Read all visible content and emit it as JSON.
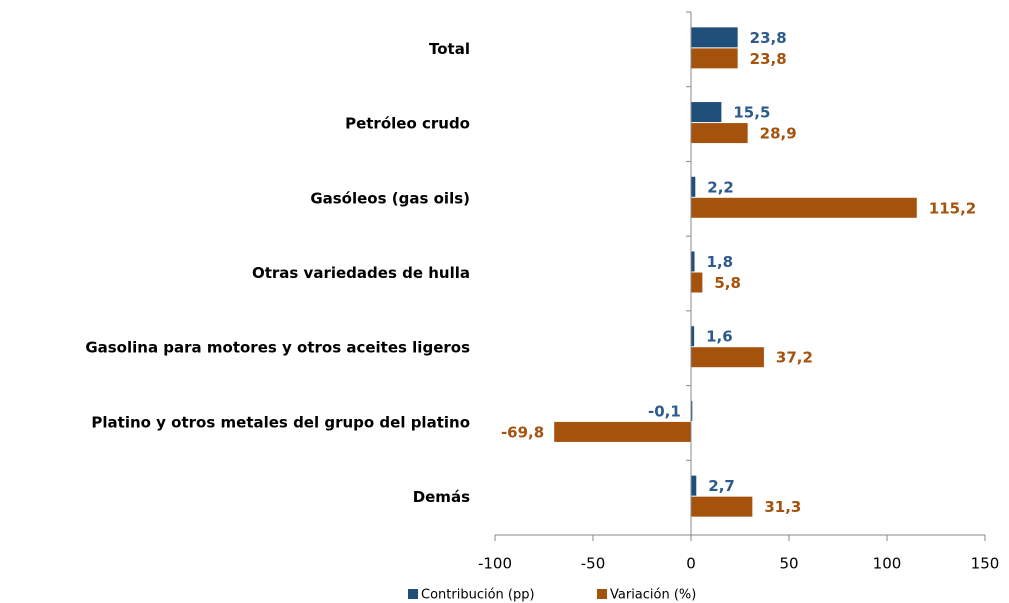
{
  "chart_data": {
    "type": "barh",
    "categories": [
      "Total",
      "Petróleo crudo",
      "Gasóleos (gas oils)",
      "Otras variedades de hulla",
      "Gasolina para motores y otros aceites ligeros",
      "Platino y otros metales del grupo del platino",
      "Demás"
    ],
    "series": [
      {
        "name": "Contribución (pp)",
        "color": "#1f4e79",
        "label_color": "#2c5a8c",
        "values": [
          23.8,
          15.5,
          2.2,
          1.8,
          1.6,
          -0.1,
          2.7
        ],
        "value_labels": [
          "23,8",
          "15,5",
          "2,2",
          "1,8",
          "1,6",
          "-0,1",
          "2,7"
        ]
      },
      {
        "name": "Variación (%)",
        "color": "#a5520d",
        "label_color": "#a5520d",
        "values": [
          23.8,
          28.9,
          115.2,
          5.8,
          37.2,
          -69.8,
          31.3
        ],
        "value_labels": [
          "23,8",
          "28,9",
          "115,2",
          "5,8",
          "37,2",
          "-69,8",
          "31,3"
        ]
      }
    ],
    "xlim": [
      -100,
      150
    ],
    "xticks": [
      -100,
      -50,
      0,
      50,
      100,
      150
    ],
    "legend": "bottom"
  }
}
